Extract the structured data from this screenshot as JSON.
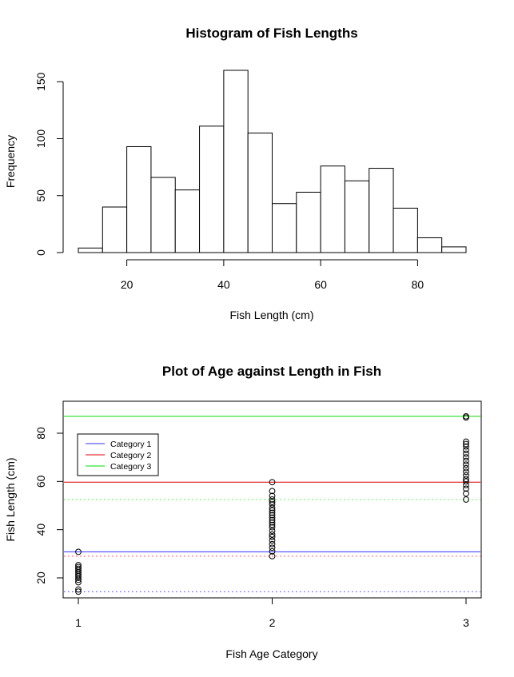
{
  "chart_data": [
    {
      "type": "bar",
      "title": "Histogram of Fish Lengths",
      "xlabel": "Fish Length (cm)",
      "ylabel": "Frequency",
      "bins": [
        {
          "from": 10,
          "to": 15,
          "count": 4
        },
        {
          "from": 15,
          "to": 20,
          "count": 40
        },
        {
          "from": 20,
          "to": 25,
          "count": 93
        },
        {
          "from": 25,
          "to": 30,
          "count": 66
        },
        {
          "from": 30,
          "to": 35,
          "count": 55
        },
        {
          "from": 35,
          "to": 40,
          "count": 111
        },
        {
          "from": 40,
          "to": 45,
          "count": 160
        },
        {
          "from": 45,
          "to": 50,
          "count": 105
        },
        {
          "from": 50,
          "to": 55,
          "count": 43
        },
        {
          "from": 55,
          "to": 60,
          "count": 53
        },
        {
          "from": 60,
          "to": 65,
          "count": 76
        },
        {
          "from": 65,
          "to": 70,
          "count": 63
        },
        {
          "from": 70,
          "to": 75,
          "count": 74
        },
        {
          "from": 75,
          "to": 80,
          "count": 39
        },
        {
          "from": 80,
          "to": 85,
          "count": 13
        },
        {
          "from": 85,
          "to": 90,
          "count": 5
        }
      ],
      "xticks": [
        20,
        40,
        60,
        80
      ],
      "yticks": [
        0,
        50,
        100,
        150
      ],
      "xlim": [
        10,
        90
      ],
      "ylim": [
        0,
        160
      ]
    },
    {
      "type": "scatter",
      "title": "Plot of Age against Length in Fish",
      "xlabel": "Fish Age Category",
      "ylabel": "Fish Length (cm)",
      "xticks": [
        1,
        2,
        3
      ],
      "yticks": [
        20,
        40,
        60,
        80
      ],
      "xlim": [
        0.9,
        3.08
      ],
      "ylim": [
        11,
        93
      ],
      "points": [
        {
          "x": 1,
          "y": [
            14.3,
            15.2,
            18.2,
            19.2,
            20.0,
            20.8,
            21.5,
            22.3,
            23.0,
            23.8,
            24.5,
            25.3,
            30.8
          ]
        },
        {
          "x": 2,
          "y": [
            29.0,
            31.0,
            32.5,
            34.0,
            35.5,
            37.0,
            38.0,
            39.5,
            41.0,
            42.0,
            43.0,
            44.0,
            45.0,
            46.0,
            47.0,
            48.0,
            49.0,
            50.5,
            51.5,
            52.5,
            54.0,
            56.0,
            59.7
          ]
        },
        {
          "x": 3,
          "y": [
            52.5,
            55.0,
            57.0,
            58.5,
            60.0,
            61.0,
            62.5,
            64.0,
            65.5,
            67.0,
            68.5,
            70.0,
            71.5,
            73.0,
            74.5,
            75.5,
            76.5,
            86.5,
            87.0
          ]
        }
      ],
      "hlines": [
        {
          "y": 87.0,
          "color": "#00dd00",
          "style": "solid"
        },
        {
          "y": 59.7,
          "color": "#dd0000",
          "style": "solid"
        },
        {
          "y": 52.5,
          "color": "#44ee44",
          "style": "dotted"
        },
        {
          "y": 30.8,
          "color": "#3333ff",
          "style": "solid"
        },
        {
          "y": 29.0,
          "color": "#ff3333",
          "style": "dotted"
        },
        {
          "y": 14.3,
          "color": "#3333ff",
          "style": "dotted"
        }
      ],
      "legend": {
        "placement": "top-left",
        "entries": [
          {
            "name": "Category 1",
            "color": "#3333ff"
          },
          {
            "name": "Category 2",
            "color": "#dd0000"
          },
          {
            "name": "Category 3",
            "color": "#00dd00"
          }
        ]
      }
    }
  ]
}
